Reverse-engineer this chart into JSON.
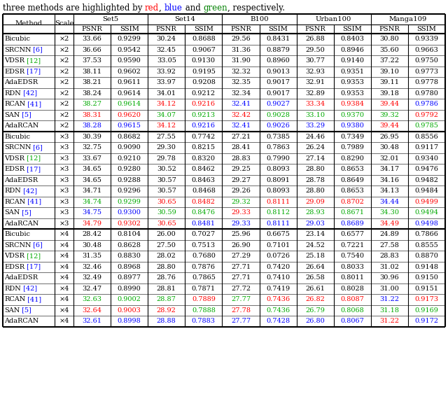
{
  "header_parts": [
    [
      "three methods are highlighted by ",
      "black"
    ],
    [
      "red",
      "red"
    ],
    [
      ", ",
      "black"
    ],
    [
      "blue",
      "blue"
    ],
    [
      " and ",
      "black"
    ],
    [
      "green",
      "green"
    ],
    [
      ", respectively.",
      "black"
    ]
  ],
  "datasets": [
    "Set5",
    "Set14",
    "B100",
    "Urban100",
    "Manga109"
  ],
  "sections": [
    {
      "scale": "2",
      "rows": [
        {
          "method": "Bicubic",
          "ref": "",
          "ref_color": "black",
          "data": [
            "33.66",
            "0.9299",
            "30.24",
            "0.8688",
            "29.56",
            "0.8431",
            "26.88",
            "0.8403",
            "30.80",
            "0.9339"
          ],
          "colors": [
            "k",
            "k",
            "k",
            "k",
            "k",
            "k",
            "k",
            "k",
            "k",
            "k"
          ]
        },
        {
          "method": "SRCNN",
          "ref": "[6]",
          "ref_color": "#0000ff",
          "data": [
            "36.66",
            "0.9542",
            "32.45",
            "0.9067",
            "31.36",
            "0.8879",
            "29.50",
            "0.8946",
            "35.60",
            "0.9663"
          ],
          "colors": [
            "k",
            "k",
            "k",
            "k",
            "k",
            "k",
            "k",
            "k",
            "k",
            "k"
          ]
        },
        {
          "method": "VDSR",
          "ref": "[12]",
          "ref_color": "#00aa00",
          "data": [
            "37.53",
            "0.9590",
            "33.05",
            "0.9130",
            "31.90",
            "0.8960",
            "30.77",
            "0.9140",
            "37.22",
            "0.9750"
          ],
          "colors": [
            "k",
            "k",
            "k",
            "k",
            "k",
            "k",
            "k",
            "k",
            "k",
            "k"
          ]
        },
        {
          "method": "EDSR",
          "ref": "[17]",
          "ref_color": "#0000ff",
          "data": [
            "38.11",
            "0.9602",
            "33.92",
            "0.9195",
            "32.32",
            "0.9013",
            "32.93",
            "0.9351",
            "39.10",
            "0.9773"
          ],
          "colors": [
            "k",
            "k",
            "k",
            "k",
            "k",
            "k",
            "k",
            "k",
            "k",
            "k"
          ]
        },
        {
          "method": "AdaEDSR",
          "ref": "",
          "ref_color": "black",
          "data": [
            "38.21",
            "0.9611",
            "33.97",
            "0.9208",
            "32.35",
            "0.9017",
            "32.91",
            "0.9353",
            "39.11",
            "0.9778"
          ],
          "colors": [
            "k",
            "k",
            "k",
            "k",
            "k",
            "k",
            "k",
            "k",
            "k",
            "k"
          ]
        },
        {
          "method": "RDN",
          "ref": "[42]",
          "ref_color": "#0000ff",
          "data": [
            "38.24",
            "0.9614",
            "34.01",
            "0.9212",
            "32.34",
            "0.9017",
            "32.89",
            "0.9353",
            "39.18",
            "0.9780"
          ],
          "colors": [
            "k",
            "k",
            "k",
            "k",
            "k",
            "k",
            "k",
            "k",
            "k",
            "k"
          ]
        },
        {
          "method": "RCAN",
          "ref": "[41]",
          "ref_color": "#0000ff",
          "data": [
            "38.27",
            "0.9614",
            "34.12",
            "0.9216",
            "32.41",
            "0.9027",
            "33.34",
            "0.9384",
            "39.44",
            "0.9786"
          ],
          "colors": [
            "#00aa00",
            "#00aa00",
            "#ff0000",
            "#ff0000",
            "#0000ff",
            "#0000ff",
            "#ff0000",
            "#ff0000",
            "#ff0000",
            "#0000ff"
          ]
        },
        {
          "method": "SAN",
          "ref": "[5]",
          "ref_color": "#0000ff",
          "data": [
            "38.31",
            "0.9620",
            "34.07",
            "0.9213",
            "32.42",
            "0.9028",
            "33.10",
            "0.9370",
            "39.32",
            "0.9792"
          ],
          "colors": [
            "#ff0000",
            "#ff0000",
            "#00aa00",
            "#00aa00",
            "#ff0000",
            "#00aa00",
            "#00aa00",
            "#00aa00",
            "#00aa00",
            "#ff0000"
          ]
        },
        {
          "method": "AdaRCAN",
          "ref": "",
          "ref_color": "black",
          "data": [
            "38.28",
            "0.9615",
            "34.12",
            "0.9216",
            "32.41",
            "0.9026",
            "33.29",
            "0.9380",
            "39.44",
            "0.9785"
          ],
          "colors": [
            "#0000ff",
            "#0000ff",
            "#ff0000",
            "#0000ff",
            "#0000ff",
            "#0000ff",
            "#0000ff",
            "#0000ff",
            "#ff0000",
            "#00aa00"
          ]
        }
      ]
    },
    {
      "scale": "3",
      "rows": [
        {
          "method": "Bicubic",
          "ref": "",
          "ref_color": "black",
          "data": [
            "30.39",
            "0.8682",
            "27.55",
            "0.7742",
            "27.21",
            "0.7385",
            "24.46",
            "0.7349",
            "26.95",
            "0.8556"
          ],
          "colors": [
            "k",
            "k",
            "k",
            "k",
            "k",
            "k",
            "k",
            "k",
            "k",
            "k"
          ]
        },
        {
          "method": "SRCNN",
          "ref": "[6]",
          "ref_color": "#0000ff",
          "data": [
            "32.75",
            "0.9090",
            "29.30",
            "0.8215",
            "28.41",
            "0.7863",
            "26.24",
            "0.7989",
            "30.48",
            "0.9117"
          ],
          "colors": [
            "k",
            "k",
            "k",
            "k",
            "k",
            "k",
            "k",
            "k",
            "k",
            "k"
          ]
        },
        {
          "method": "VDSR",
          "ref": "[12]",
          "ref_color": "#00aa00",
          "data": [
            "33.67",
            "0.9210",
            "29.78",
            "0.8320",
            "28.83",
            "0.7990",
            "27.14",
            "0.8290",
            "32.01",
            "0.9340"
          ],
          "colors": [
            "k",
            "k",
            "k",
            "k",
            "k",
            "k",
            "k",
            "k",
            "k",
            "k"
          ]
        },
        {
          "method": "EDSR",
          "ref": "[17]",
          "ref_color": "#0000ff",
          "data": [
            "34.65",
            "0.9280",
            "30.52",
            "0.8462",
            "29.25",
            "0.8093",
            "28.80",
            "0.8653",
            "34.17",
            "0.9476"
          ],
          "colors": [
            "k",
            "k",
            "k",
            "k",
            "k",
            "k",
            "k",
            "k",
            "k",
            "k"
          ]
        },
        {
          "method": "AdaEDSR",
          "ref": "",
          "ref_color": "black",
          "data": [
            "34.65",
            "0.9288",
            "30.57",
            "0.8463",
            "29.27",
            "0.8091",
            "28.78",
            "0.8649",
            "34.16",
            "0.9482"
          ],
          "colors": [
            "k",
            "k",
            "k",
            "k",
            "k",
            "k",
            "k",
            "k",
            "k",
            "k"
          ]
        },
        {
          "method": "RDN",
          "ref": "[42]",
          "ref_color": "#0000ff",
          "data": [
            "34.71",
            "0.9296",
            "30.57",
            "0.8468",
            "29.26",
            "0.8093",
            "28.80",
            "0.8653",
            "34.13",
            "0.9484"
          ],
          "colors": [
            "k",
            "k",
            "k",
            "k",
            "k",
            "k",
            "k",
            "k",
            "k",
            "k"
          ]
        },
        {
          "method": "RCAN",
          "ref": "[41]",
          "ref_color": "#0000ff",
          "data": [
            "34.74",
            "0.9299",
            "30.65",
            "0.8482",
            "29.32",
            "0.8111",
            "29.09",
            "0.8702",
            "34.44",
            "0.9499"
          ],
          "colors": [
            "#00aa00",
            "#00aa00",
            "#ff0000",
            "#ff0000",
            "#00aa00",
            "#ff0000",
            "#ff0000",
            "#ff0000",
            "#0000ff",
            "#ff0000"
          ]
        },
        {
          "method": "SAN",
          "ref": "[5]",
          "ref_color": "#0000ff",
          "data": [
            "34.75",
            "0.9300",
            "30.59",
            "0.8476",
            "29.33",
            "0.8112",
            "28.93",
            "0.8671",
            "34.30",
            "0.9494"
          ],
          "colors": [
            "#0000ff",
            "#0000ff",
            "#00aa00",
            "#00aa00",
            "#ff0000",
            "#00aa00",
            "#00aa00",
            "#00aa00",
            "#00aa00",
            "#00aa00"
          ]
        },
        {
          "method": "AdaRCAN",
          "ref": "",
          "ref_color": "black",
          "data": [
            "34.79",
            "0.9302",
            "30.65",
            "0.8481",
            "29.33",
            "0.8111",
            "29.03",
            "0.8689",
            "34.49",
            "0.9498"
          ],
          "colors": [
            "#ff0000",
            "#ff0000",
            "#ff0000",
            "#0000ff",
            "#0000ff",
            "#0000ff",
            "#0000ff",
            "#0000ff",
            "#ff0000",
            "#0000ff"
          ]
        }
      ]
    },
    {
      "scale": "4",
      "rows": [
        {
          "method": "Bicubic",
          "ref": "",
          "ref_color": "black",
          "data": [
            "28.42",
            "0.8104",
            "26.00",
            "0.7027",
            "25.96",
            "0.6675",
            "23.14",
            "0.6577",
            "24.89",
            "0.7866"
          ],
          "colors": [
            "k",
            "k",
            "k",
            "k",
            "k",
            "k",
            "k",
            "k",
            "k",
            "k"
          ]
        },
        {
          "method": "SRCNN",
          "ref": "[6]",
          "ref_color": "#0000ff",
          "data": [
            "30.48",
            "0.8628",
            "27.50",
            "0.7513",
            "26.90",
            "0.7101",
            "24.52",
            "0.7221",
            "27.58",
            "0.8555"
          ],
          "colors": [
            "k",
            "k",
            "k",
            "k",
            "k",
            "k",
            "k",
            "k",
            "k",
            "k"
          ]
        },
        {
          "method": "VDSR",
          "ref": "[12]",
          "ref_color": "#00aa00",
          "data": [
            "31.35",
            "0.8830",
            "28.02",
            "0.7680",
            "27.29",
            "0.0726",
            "25.18",
            "0.7540",
            "28.83",
            "0.8870"
          ],
          "colors": [
            "k",
            "k",
            "k",
            "k",
            "k",
            "k",
            "k",
            "k",
            "k",
            "k"
          ]
        },
        {
          "method": "EDSR",
          "ref": "[17]",
          "ref_color": "#0000ff",
          "data": [
            "32.46",
            "0.8968",
            "28.80",
            "0.7876",
            "27.71",
            "0.7420",
            "26.64",
            "0.8033",
            "31.02",
            "0.9148"
          ],
          "colors": [
            "k",
            "k",
            "k",
            "k",
            "k",
            "k",
            "k",
            "k",
            "k",
            "k"
          ]
        },
        {
          "method": "AdaEDSR",
          "ref": "",
          "ref_color": "black",
          "data": [
            "32.49",
            "0.8977",
            "28.76",
            "0.7865",
            "27.71",
            "0.7410",
            "26.58",
            "0.8011",
            "30.96",
            "0.9150"
          ],
          "colors": [
            "k",
            "k",
            "k",
            "k",
            "k",
            "k",
            "k",
            "k",
            "k",
            "k"
          ]
        },
        {
          "method": "RDN",
          "ref": "[42]",
          "ref_color": "#0000ff",
          "data": [
            "32.47",
            "0.8990",
            "28.81",
            "0.7871",
            "27.72",
            "0.7419",
            "26.61",
            "0.8028",
            "31.00",
            "0.9151"
          ],
          "colors": [
            "k",
            "k",
            "k",
            "k",
            "k",
            "k",
            "k",
            "k",
            "k",
            "k"
          ]
        },
        {
          "method": "RCAN",
          "ref": "[41]",
          "ref_color": "#0000ff",
          "data": [
            "32.63",
            "0.9002",
            "28.87",
            "0.7889",
            "27.77",
            "0.7436",
            "26.82",
            "0.8087",
            "31.22",
            "0.9173"
          ],
          "colors": [
            "#00aa00",
            "#00aa00",
            "#00aa00",
            "#ff0000",
            "#00aa00",
            "#ff0000",
            "#ff0000",
            "#ff0000",
            "#0000ff",
            "#ff0000"
          ]
        },
        {
          "method": "SAN",
          "ref": "[5]",
          "ref_color": "#0000ff",
          "data": [
            "32.64",
            "0.9003",
            "28.92",
            "0.7888",
            "27.78",
            "0.7436",
            "26.79",
            "0.8068",
            "31.18",
            "0.9169"
          ],
          "colors": [
            "#ff0000",
            "#ff0000",
            "#ff0000",
            "#00aa00",
            "#ff0000",
            "#00aa00",
            "#00aa00",
            "#00aa00",
            "#00aa00",
            "#00aa00"
          ]
        },
        {
          "method": "AdaRCAN",
          "ref": "",
          "ref_color": "black",
          "data": [
            "32.61",
            "0.8998",
            "28.88",
            "0.7883",
            "27.77",
            "0.7428",
            "26.80",
            "0.8067",
            "31.22",
            "0.9172"
          ],
          "colors": [
            "#0000ff",
            "#0000ff",
            "#0000ff",
            "#0000ff",
            "#0000ff",
            "#0000ff",
            "#0000ff",
            "#0000ff",
            "#ff0000",
            "#0000ff"
          ]
        }
      ]
    }
  ]
}
